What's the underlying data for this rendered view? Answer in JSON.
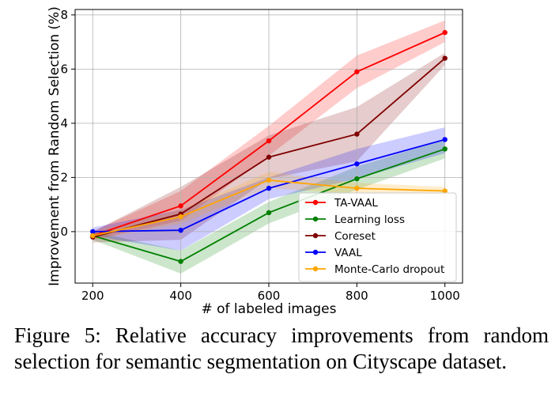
{
  "chart_data": {
    "type": "line",
    "title": "",
    "xlabel": "# of labeled images",
    "ylabel": "Improvement from Random Selection (%)",
    "x": [
      200,
      400,
      600,
      800,
      1000
    ],
    "xlim": [
      160,
      1040
    ],
    "ylim": [
      -1.9,
      8.2
    ],
    "xticks": [
      200,
      400,
      600,
      800,
      1000
    ],
    "yticks": [
      0,
      2,
      4,
      6,
      8
    ],
    "grid": true,
    "legend_position": "lower-right",
    "series": [
      {
        "name": "TA-VAAL",
        "color": "#ff0000",
        "values": [
          -0.15,
          0.95,
          3.35,
          5.9,
          7.35
        ],
        "lower": [
          -0.3,
          0.4,
          2.8,
          5.3,
          7.0
        ],
        "upper": [
          0.0,
          1.5,
          3.9,
          6.5,
          7.8
        ]
      },
      {
        "name": "Learning loss",
        "color": "#008000",
        "values": [
          -0.15,
          -1.1,
          0.7,
          1.95,
          3.05
        ],
        "lower": [
          -0.3,
          -1.55,
          0.3,
          1.55,
          2.7
        ],
        "upper": [
          0.0,
          -0.7,
          1.1,
          2.4,
          3.4
        ]
      },
      {
        "name": "Coreset",
        "color": "#800000",
        "values": [
          -0.2,
          0.65,
          2.75,
          3.6,
          6.4
        ],
        "lower": [
          -0.4,
          -0.3,
          1.95,
          2.6,
          6.15
        ],
        "upper": [
          0.0,
          1.65,
          3.55,
          4.6,
          6.6
        ]
      },
      {
        "name": "VAAL",
        "color": "#0000ff",
        "values": [
          0.0,
          0.05,
          1.6,
          2.5,
          3.4
        ],
        "lower": [
          -0.15,
          -0.7,
          1.2,
          1.95,
          2.9
        ],
        "upper": [
          0.15,
          0.8,
          2.0,
          3.05,
          3.85
        ]
      },
      {
        "name": "Monte-Carlo dropout",
        "color": "#ffa500",
        "values": [
          -0.15,
          0.55,
          1.9,
          1.6,
          1.5
        ],
        "lower": [
          -0.3,
          0.3,
          1.6,
          1.4,
          1.35
        ],
        "upper": [
          0.0,
          0.8,
          2.2,
          1.8,
          1.65
        ]
      }
    ]
  },
  "caption": "Figure 5: Relative accuracy improvements from random selection for semantic segmentation on Cityscape dataset."
}
